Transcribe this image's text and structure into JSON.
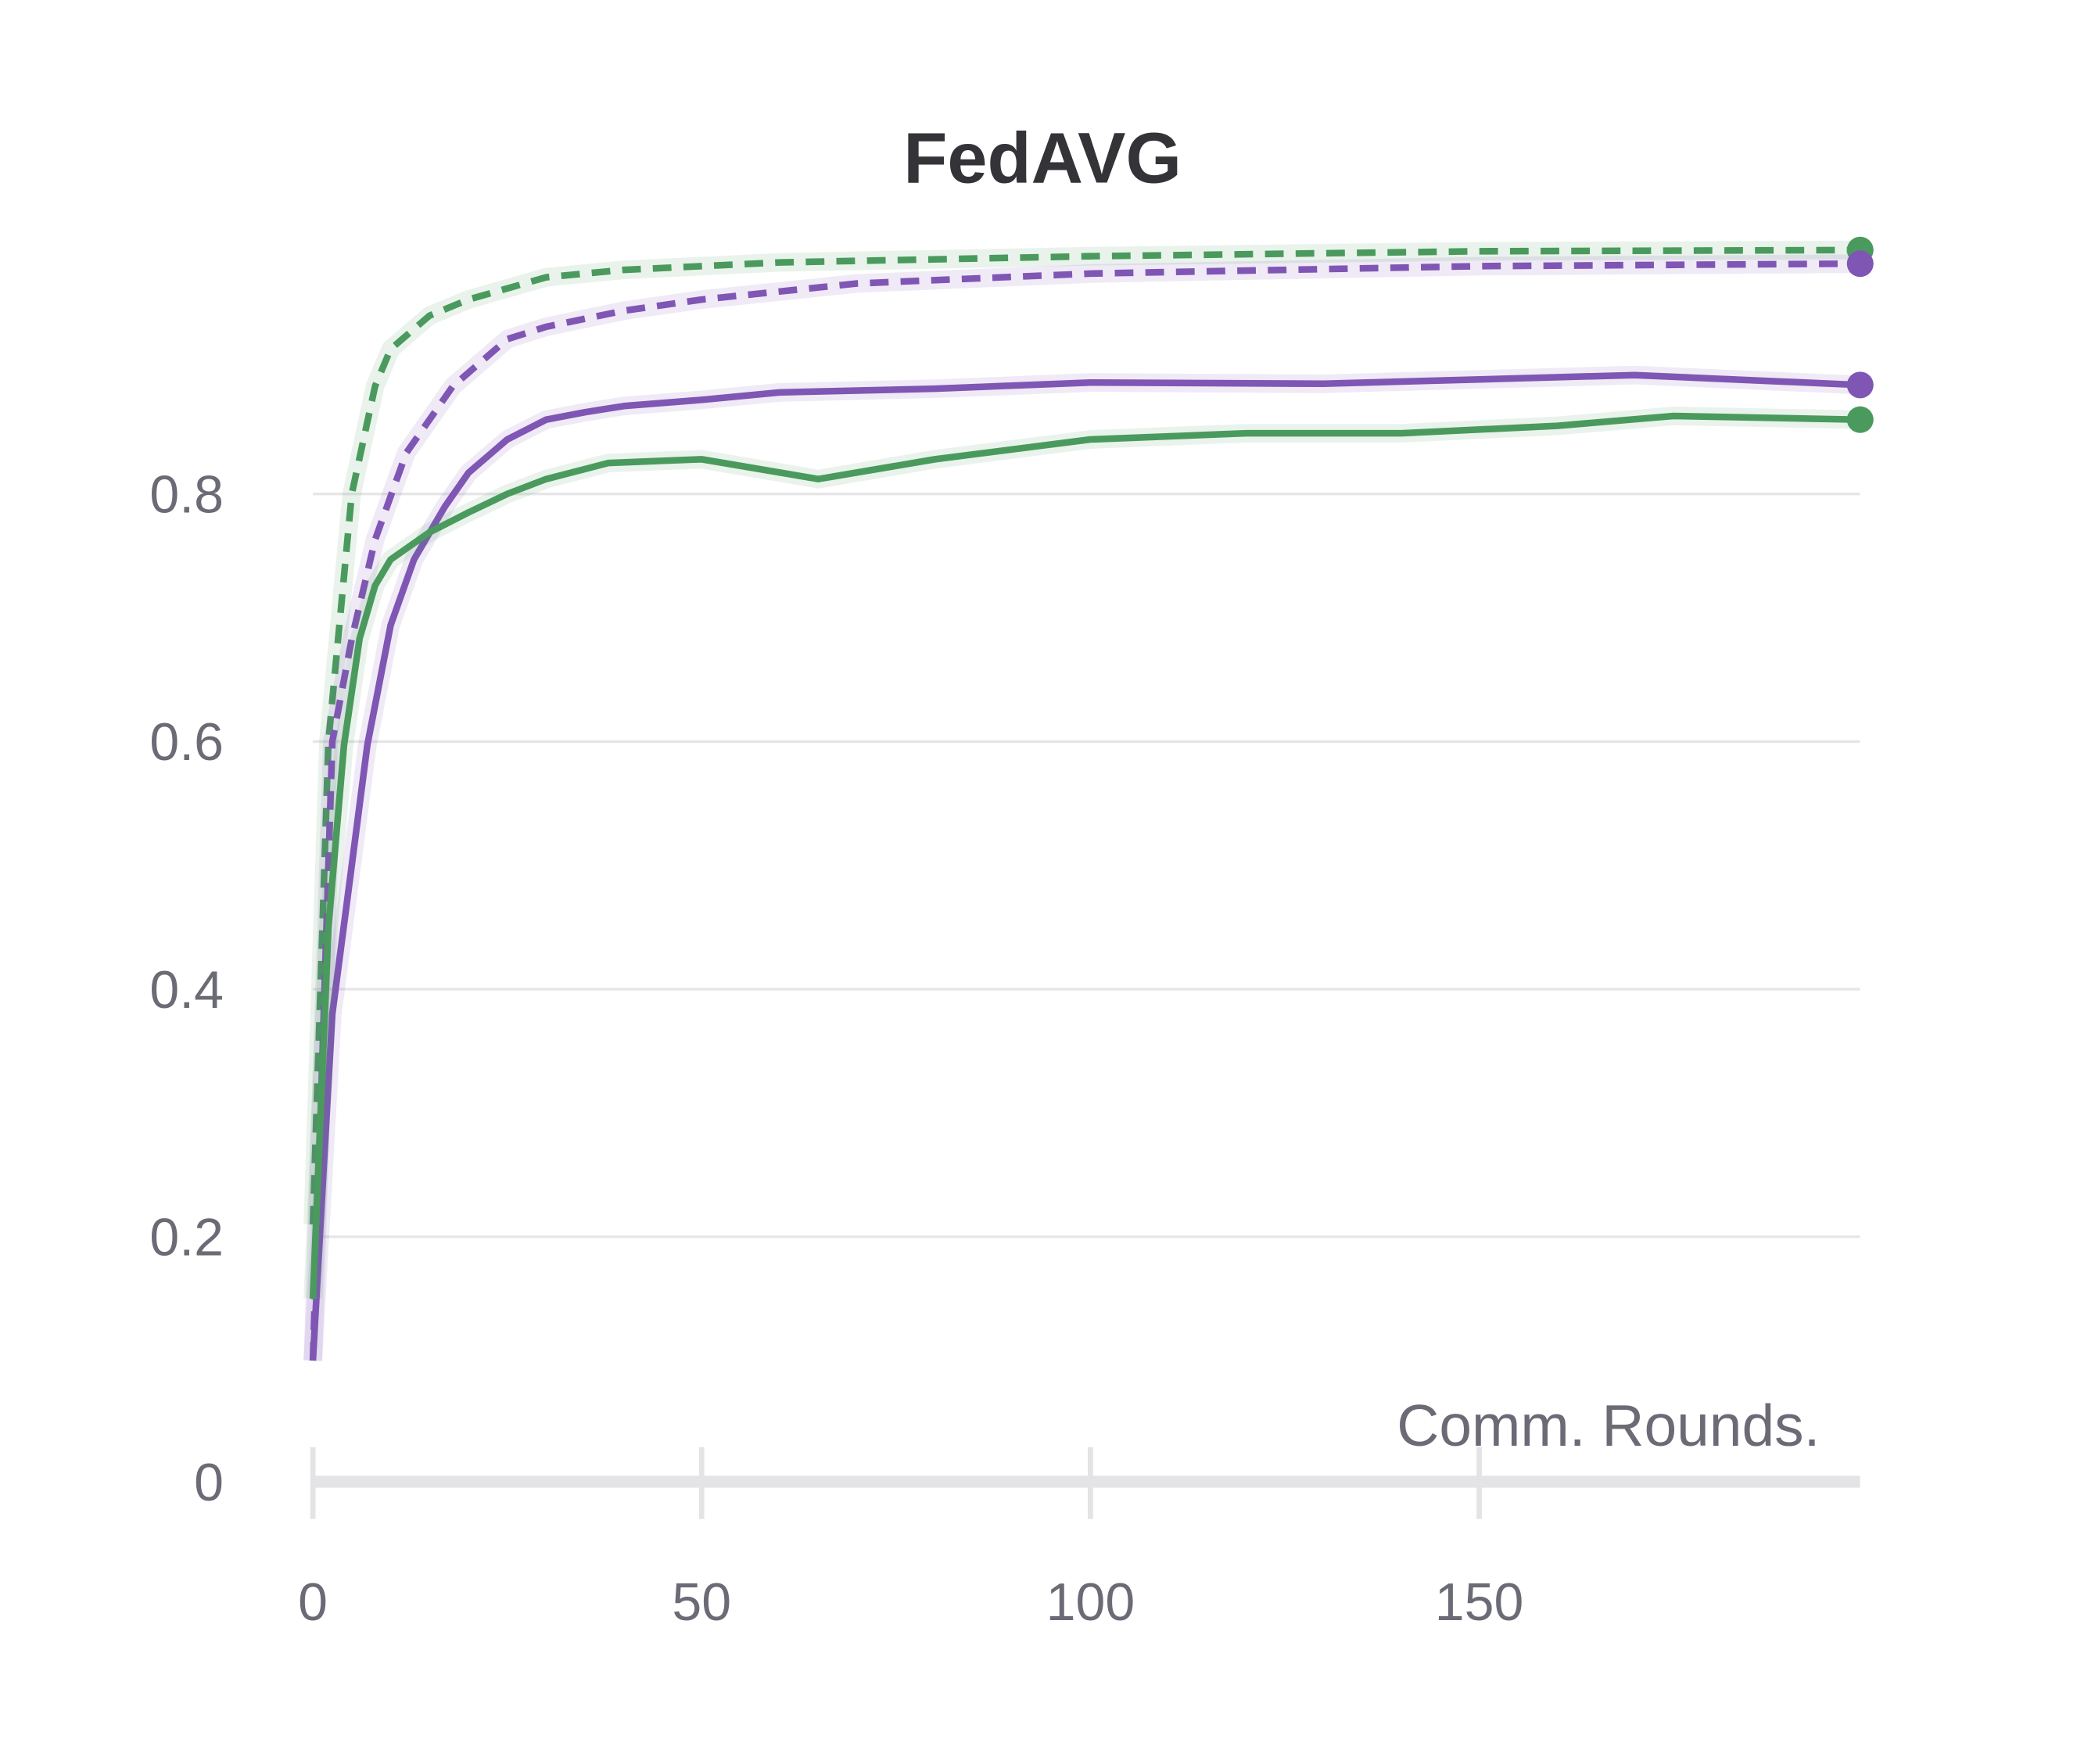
{
  "chart_data": {
    "type": "line",
    "title": "FedAVG",
    "xlabel": "Comm. Rounds.",
    "ylabel": "",
    "xlim": [
      0,
      199
    ],
    "ylim": [
      0,
      1.0
    ],
    "x_ticks": [
      "0",
      "50",
      "100",
      "150"
    ],
    "x_tick_values": [
      0,
      50,
      100,
      150
    ],
    "y_ticks": [
      "0",
      "0.2",
      "0.4",
      "0.6",
      "0.8"
    ],
    "y_tick_values": [
      0,
      0.2,
      0.4,
      0.6,
      0.8
    ],
    "grid": "horizontal",
    "series": [
      {
        "name": "green-dashed",
        "color": "#4a9a5e",
        "dash": true,
        "x": [
          0,
          2,
          5,
          8,
          10,
          15,
          20,
          30,
          40,
          60,
          100,
          150,
          199
        ],
        "y": [
          0.21,
          0.6,
          0.8,
          0.887,
          0.917,
          0.944,
          0.957,
          0.975,
          0.981,
          0.987,
          0.992,
          0.996,
          0.997
        ]
      },
      {
        "name": "purple-dashed",
        "color": "#7f56b4",
        "dash": true,
        "x": [
          0,
          2.5,
          5,
          8,
          12,
          18,
          25,
          30,
          40,
          50,
          70,
          100,
          150,
          199
        ],
        "y": [
          0.1,
          0.6,
          0.683,
          0.763,
          0.833,
          0.887,
          0.925,
          0.935,
          0.948,
          0.957,
          0.97,
          0.978,
          0.984,
          0.986
        ]
      },
      {
        "name": "purple-solid",
        "color": "#7f56b4",
        "dash": false,
        "x": [
          0,
          2.5,
          5,
          7,
          10,
          13,
          17,
          20,
          25,
          30,
          35,
          40,
          50,
          60,
          80,
          100,
          130,
          170,
          199
        ],
        "y": [
          0.1,
          0.38,
          0.5,
          0.597,
          0.694,
          0.747,
          0.79,
          0.817,
          0.844,
          0.86,
          0.866,
          0.871,
          0.876,
          0.882,
          0.885,
          0.89,
          0.889,
          0.896,
          0.888
        ]
      },
      {
        "name": "green-solid",
        "color": "#4a9a5e",
        "dash": false,
        "x": [
          0,
          2,
          4,
          6,
          8,
          10,
          15,
          20,
          25,
          30,
          38,
          50,
          65,
          80,
          100,
          120,
          140,
          160,
          175,
          199
        ],
        "y": [
          0.15,
          0.45,
          0.597,
          0.683,
          0.726,
          0.747,
          0.769,
          0.785,
          0.8,
          0.812,
          0.825,
          0.828,
          0.812,
          0.828,
          0.844,
          0.849,
          0.849,
          0.855,
          0.863,
          0.86
        ]
      }
    ]
  }
}
